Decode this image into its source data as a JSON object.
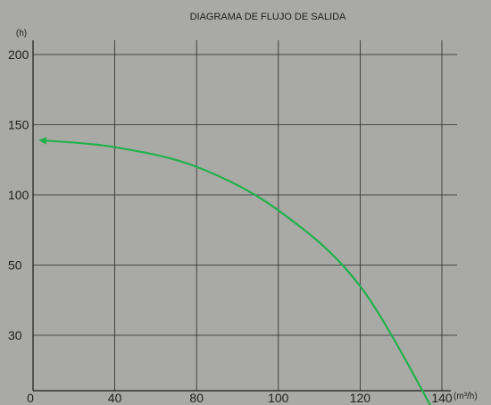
{
  "chart_data": {
    "type": "line",
    "title": "DIAGRAMA DE FLUJO DE SALIDA",
    "xlabel": "(m³/h)",
    "ylabel": "(h)",
    "x_ticks": [
      0,
      40,
      80,
      100,
      120,
      140
    ],
    "y_ticks": [
      30,
      50,
      100,
      150,
      200
    ],
    "grid": true,
    "series": [
      {
        "color": "#22b14c",
        "points": [
          [
            0,
            139
          ],
          [
            40,
            134
          ],
          [
            80,
            120
          ],
          [
            100,
            89
          ],
          [
            120,
            44
          ],
          [
            140,
            5
          ]
        ]
      }
    ]
  }
}
